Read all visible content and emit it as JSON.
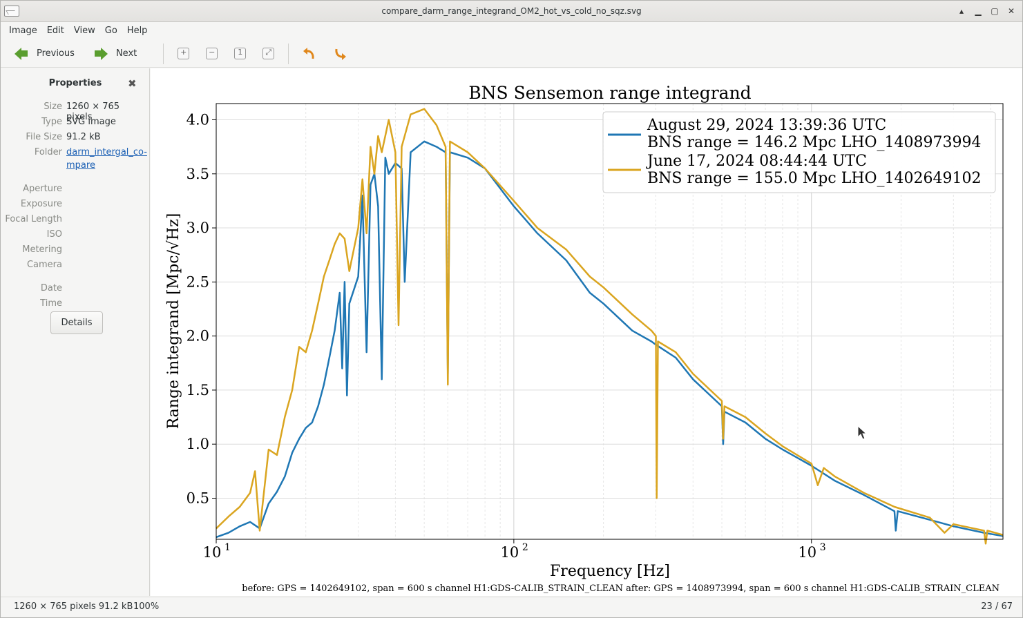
{
  "window": {
    "title": "compare_darm_range_integrand_OM2_hot_vs_cold_no_sqz.svg"
  },
  "menu": [
    "Image",
    "Edit",
    "View",
    "Go",
    "Help"
  ],
  "toolbar": {
    "previous_label": "Previous",
    "next_label": "Next"
  },
  "sidebar": {
    "header": "Properties",
    "props": [
      {
        "k": "Size",
        "v": "1260 × 765 pixels"
      },
      {
        "k": "Type",
        "v": "SVG image"
      },
      {
        "k": "File Size",
        "v": "91.2 kB"
      },
      {
        "k": "Folder",
        "v": "darm_intergal_co-mpare"
      }
    ],
    "empty_props": [
      "Aperture",
      "Exposure",
      "Focal Length",
      "ISO",
      "Metering",
      "Camera"
    ],
    "date_props": [
      "Date",
      "Time"
    ],
    "details_label": "Details"
  },
  "status": {
    "dims": "1260 × 765 pixels  91.2 kB",
    "zoom": "100%",
    "position": "23 / 67"
  },
  "chart_data": {
    "type": "line",
    "title": "BNS Sensemon range integrand",
    "xlabel": "Frequency [Hz]",
    "ylabel": "Range integrand [Mpc/√Hz]",
    "xscale": "log",
    "xlim": [
      10,
      4400
    ],
    "ylim": [
      0.12,
      4.15
    ],
    "yticks": [
      "0.5",
      "1.0",
      "1.5",
      "2.0",
      "2.5",
      "3.0",
      "3.5",
      "4.0"
    ],
    "xticks": [
      {
        "base": "10",
        "exp": "1"
      },
      {
        "base": "10",
        "exp": "2"
      },
      {
        "base": "10",
        "exp": "3"
      }
    ],
    "grid": true,
    "legend_position": "top-right",
    "footer": "before: GPS = 1402649102, span = 600 s channel H1:GDS-CALIB_STRAIN_CLEAN after: GPS = 1408973994, span = 600 s channel H1:GDS-CALIB_STRAIN_CLEAN",
    "series": [
      {
        "name": "August 29, 2024 13:39:36 UTC",
        "name2": "BNS range = 146.2 Mpc LHO_1408973994",
        "color": "#1f77b4",
        "points": [
          [
            10,
            0.14
          ],
          [
            11,
            0.18
          ],
          [
            12,
            0.24
          ],
          [
            13,
            0.28
          ],
          [
            14,
            0.22
          ],
          [
            15,
            0.45
          ],
          [
            16,
            0.56
          ],
          [
            17,
            0.7
          ],
          [
            18,
            0.92
          ],
          [
            19,
            1.05
          ],
          [
            20,
            1.15
          ],
          [
            21,
            1.2
          ],
          [
            22,
            1.35
          ],
          [
            23,
            1.55
          ],
          [
            24,
            1.8
          ],
          [
            25,
            2.05
          ],
          [
            26,
            2.4
          ],
          [
            26.5,
            1.7
          ],
          [
            27,
            2.5
          ],
          [
            27.5,
            1.45
          ],
          [
            28,
            2.3
          ],
          [
            30,
            2.55
          ],
          [
            31,
            3.3
          ],
          [
            32,
            1.85
          ],
          [
            33,
            3.4
          ],
          [
            34,
            3.5
          ],
          [
            35,
            3.2
          ],
          [
            36,
            1.6
          ],
          [
            37,
            3.65
          ],
          [
            38,
            3.5
          ],
          [
            40,
            3.6
          ],
          [
            42,
            3.55
          ],
          [
            43,
            2.5
          ],
          [
            45,
            3.7
          ],
          [
            50,
            3.8
          ],
          [
            55,
            3.75
          ],
          [
            59,
            3.7
          ],
          [
            60,
            1.65
          ],
          [
            61,
            3.7
          ],
          [
            70,
            3.65
          ],
          [
            80,
            3.55
          ],
          [
            100,
            3.2
          ],
          [
            120,
            2.95
          ],
          [
            150,
            2.7
          ],
          [
            180,
            2.4
          ],
          [
            200,
            2.3
          ],
          [
            250,
            2.05
          ],
          [
            290,
            1.95
          ],
          [
            300,
            1.92
          ],
          [
            350,
            1.8
          ],
          [
            400,
            1.6
          ],
          [
            500,
            1.35
          ],
          [
            505,
            1.0
          ],
          [
            510,
            1.3
          ],
          [
            600,
            1.2
          ],
          [
            700,
            1.05
          ],
          [
            800,
            0.95
          ],
          [
            1000,
            0.8
          ],
          [
            1200,
            0.66
          ],
          [
            1500,
            0.53
          ],
          [
            1900,
            0.38
          ],
          [
            1920,
            0.2
          ],
          [
            1950,
            0.38
          ],
          [
            2500,
            0.3
          ],
          [
            3000,
            0.24
          ],
          [
            3800,
            0.18
          ],
          [
            4400,
            0.15
          ]
        ]
      },
      {
        "name": "June 17, 2024 08:44:44 UTC",
        "name2": "BNS range = 155.0 Mpc LHO_1402649102",
        "color": "#daa520",
        "points": [
          [
            10,
            0.22
          ],
          [
            11,
            0.33
          ],
          [
            12,
            0.42
          ],
          [
            13,
            0.55
          ],
          [
            13.5,
            0.75
          ],
          [
            14,
            0.2
          ],
          [
            15,
            0.95
          ],
          [
            16,
            0.9
          ],
          [
            17,
            1.25
          ],
          [
            18,
            1.5
          ],
          [
            19,
            1.9
          ],
          [
            20,
            1.85
          ],
          [
            21,
            2.05
          ],
          [
            22,
            2.3
          ],
          [
            23,
            2.55
          ],
          [
            24,
            2.7
          ],
          [
            25,
            2.85
          ],
          [
            26,
            2.95
          ],
          [
            27,
            2.9
          ],
          [
            28,
            2.6
          ],
          [
            30,
            3.0
          ],
          [
            31,
            3.45
          ],
          [
            32,
            2.95
          ],
          [
            33,
            3.75
          ],
          [
            34,
            3.5
          ],
          [
            35,
            3.85
          ],
          [
            36,
            3.7
          ],
          [
            38,
            4.0
          ],
          [
            40,
            3.7
          ],
          [
            41,
            2.1
          ],
          [
            42,
            3.75
          ],
          [
            45,
            4.05
          ],
          [
            50,
            4.1
          ],
          [
            55,
            3.95
          ],
          [
            59,
            3.75
          ],
          [
            60,
            1.55
          ],
          [
            61,
            3.8
          ],
          [
            70,
            3.7
          ],
          [
            80,
            3.55
          ],
          [
            100,
            3.25
          ],
          [
            120,
            3.0
          ],
          [
            150,
            2.8
          ],
          [
            180,
            2.55
          ],
          [
            200,
            2.45
          ],
          [
            250,
            2.2
          ],
          [
            290,
            2.05
          ],
          [
            300,
            2.0
          ],
          [
            302,
            0.5
          ],
          [
            305,
            1.95
          ],
          [
            350,
            1.85
          ],
          [
            400,
            1.65
          ],
          [
            500,
            1.4
          ],
          [
            505,
            1.05
          ],
          [
            510,
            1.35
          ],
          [
            600,
            1.25
          ],
          [
            700,
            1.1
          ],
          [
            800,
            0.98
          ],
          [
            1000,
            0.82
          ],
          [
            1050,
            0.62
          ],
          [
            1100,
            0.78
          ],
          [
            1200,
            0.7
          ],
          [
            1500,
            0.55
          ],
          [
            1900,
            0.42
          ],
          [
            2500,
            0.32
          ],
          [
            2800,
            0.18
          ],
          [
            3000,
            0.26
          ],
          [
            3800,
            0.2
          ],
          [
            3850,
            0.08
          ],
          [
            3900,
            0.2
          ],
          [
            4400,
            0.16
          ]
        ]
      }
    ]
  }
}
